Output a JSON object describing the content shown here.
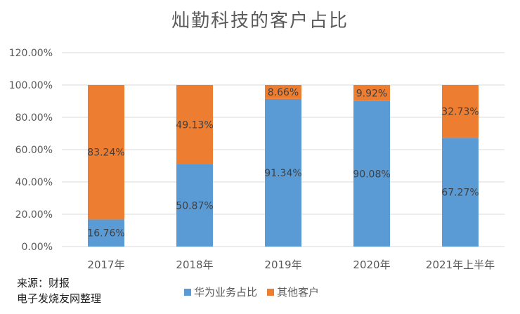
{
  "chart_data": {
    "type": "bar",
    "stacked": true,
    "title": "灿勤科技的客户占比",
    "categories": [
      "2017年",
      "2018年",
      "2019年",
      "2020年",
      "2021年上半年"
    ],
    "series": [
      {
        "name": "华为业务占比",
        "color": "#5B9BD5",
        "values": [
          16.76,
          50.87,
          91.34,
          90.08,
          67.27
        ],
        "labels": [
          "16.76%",
          "50.87%",
          "91.34%",
          "90.08%",
          "67.27%"
        ]
      },
      {
        "name": "其他客户",
        "color": "#ED7D31",
        "values": [
          83.24,
          49.13,
          8.66,
          9.92,
          32.73
        ],
        "labels": [
          "83.24%",
          "49.13%",
          "8.66%",
          "9.92%",
          "32.73%"
        ]
      }
    ],
    "ylim": [
      0,
      120
    ],
    "yticks": [
      "0.00%",
      "20.00%",
      "40.00%",
      "60.00%",
      "80.00%",
      "100.00%",
      "120.00%"
    ],
    "grid": true,
    "legend_position": "bottom"
  },
  "source": {
    "line1": "来源：财报",
    "line2": "电子发烧友网整理"
  }
}
